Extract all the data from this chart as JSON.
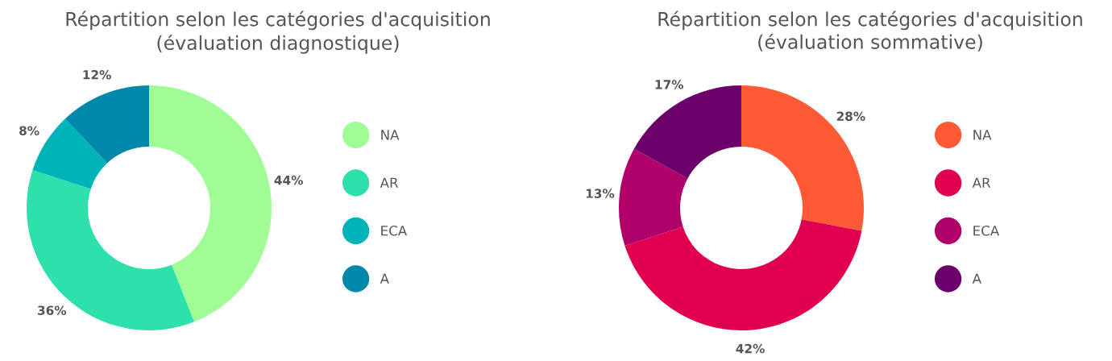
{
  "chart_data": [
    {
      "type": "donut",
      "title": "Répartition selon les catégories d'acquisition\n(évaluation diagnostique)",
      "categories": [
        "NA",
        "AR",
        "ECA",
        "A"
      ],
      "values": [
        44,
        36,
        8,
        12
      ],
      "colors": [
        "#a0fc94",
        "#2de0ac",
        "#00b3b8",
        "#0088aa"
      ],
      "value_labels": [
        "44%",
        "36%",
        "8%",
        "12%"
      ],
      "legend": "right"
    },
    {
      "type": "donut",
      "title": "Répartition selon les catégories d'acquisition\n(évaluation sommative)",
      "categories": [
        "NA",
        "AR",
        "ECA",
        "A"
      ],
      "values": [
        28,
        42,
        13,
        17
      ],
      "colors": [
        "#ff5a36",
        "#e0004f",
        "#b0006a",
        "#6c006a"
      ],
      "value_labels": [
        "28%",
        "42%",
        "13%",
        "17%"
      ],
      "legend": "right"
    }
  ]
}
